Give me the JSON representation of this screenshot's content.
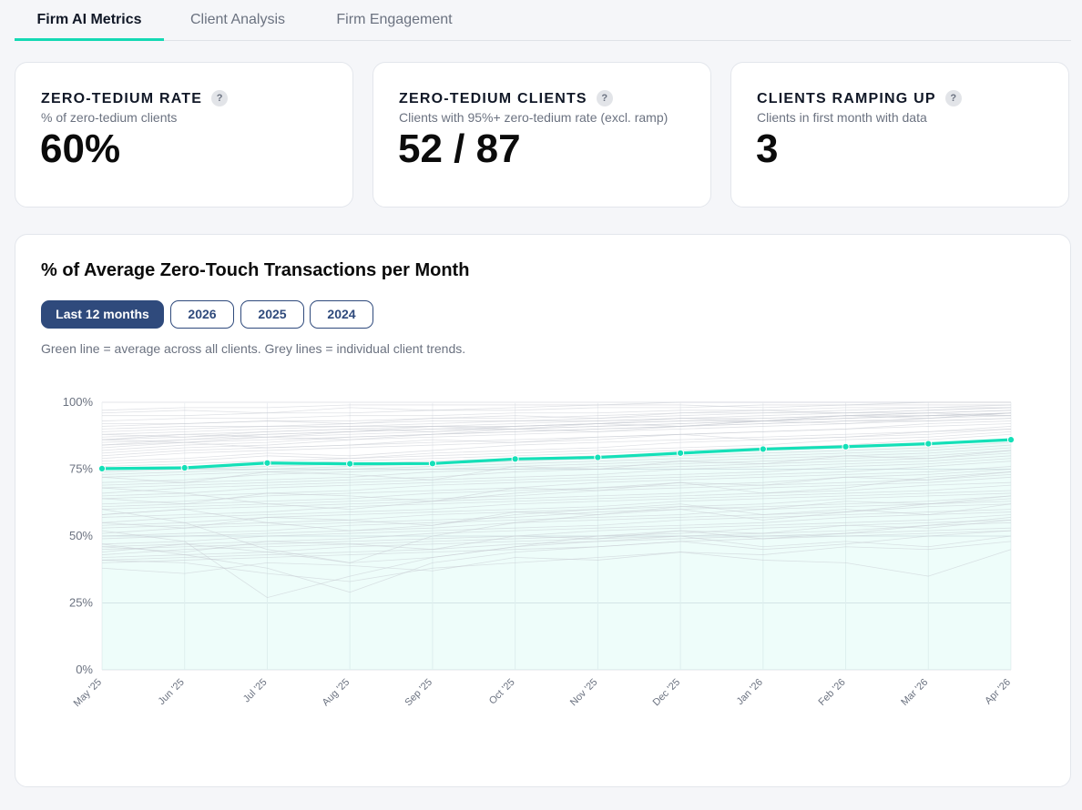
{
  "tabs": [
    {
      "label": "Firm AI Metrics",
      "active": true
    },
    {
      "label": "Client Analysis",
      "active": false
    },
    {
      "label": "Firm Engagement",
      "active": false
    }
  ],
  "metrics": [
    {
      "title": "ZERO-TEDIUM RATE",
      "help": "?",
      "subtitle": "% of zero-tedium clients",
      "value": "60%"
    },
    {
      "title": "ZERO-TEDIUM CLIENTS",
      "help": "?",
      "subtitle": "Clients with 95%+ zero-tedium rate (excl. ramp)",
      "value": "52 / 87"
    },
    {
      "title": "CLIENTS RAMPING UP",
      "help": "?",
      "subtitle": "Clients in first month with data",
      "value": "3"
    }
  ],
  "chart_section": {
    "title": "% of Average Zero-Touch Transactions per Month",
    "filters": [
      {
        "label": "Last 12 months",
        "active": true
      },
      {
        "label": "2026",
        "active": false
      },
      {
        "label": "2025",
        "active": false
      },
      {
        "label": "2024",
        "active": false
      }
    ],
    "note": "Green line = average across all clients. Grey lines = individual client trends."
  },
  "colors": {
    "accent": "#14e0b8",
    "filter_active": "#2f4a7c",
    "client_lines": "#c7cad1"
  },
  "chart_data": {
    "type": "line",
    "categories": [
      "May '25",
      "Jun '25",
      "Jul '25",
      "Aug '25",
      "Sep '25",
      "Oct '25",
      "Nov '25",
      "Dec '25",
      "Jan '26",
      "Feb '26",
      "Mar '26",
      "Apr '26"
    ],
    "y_ticks": [
      "0%",
      "25%",
      "50%",
      "75%",
      "100%"
    ],
    "ylim": [
      0,
      100
    ],
    "grid": true,
    "series": [
      {
        "role": "average",
        "values": [
          75.2,
          75.5,
          77.3,
          77.0,
          77.1,
          78.8,
          79.4,
          81.0,
          82.5,
          83.4,
          84.5,
          86.0
        ]
      }
    ],
    "client_trends": [
      [
        97,
        98,
        98,
        99,
        99,
        99,
        99,
        100,
        100,
        100,
        100,
        100
      ],
      [
        95,
        95,
        96,
        96,
        97,
        97,
        98,
        98,
        99,
        99,
        99,
        99
      ],
      [
        93,
        94,
        94,
        95,
        95,
        96,
        96,
        97,
        97,
        98,
        98,
        99
      ],
      [
        91,
        92,
        93,
        93,
        94,
        94,
        95,
        96,
        96,
        97,
        98,
        98
      ],
      [
        90,
        91,
        91,
        92,
        93,
        93,
        94,
        95,
        96,
        96,
        97,
        98
      ],
      [
        89,
        90,
        91,
        91,
        92,
        93,
        93,
        94,
        95,
        96,
        96,
        97
      ],
      [
        88,
        89,
        90,
        91,
        91,
        92,
        93,
        94,
        94,
        95,
        96,
        97
      ],
      [
        87,
        88,
        89,
        90,
        91,
        91,
        92,
        93,
        94,
        95,
        95,
        96
      ],
      [
        86,
        87,
        88,
        89,
        90,
        91,
        92,
        93,
        93,
        94,
        95,
        96
      ],
      [
        85,
        86,
        88,
        89,
        90,
        90,
        91,
        92,
        93,
        94,
        95,
        96
      ],
      [
        84,
        86,
        87,
        88,
        89,
        90,
        91,
        92,
        93,
        94,
        95,
        95
      ],
      [
        83,
        85,
        86,
        87,
        88,
        89,
        90,
        91,
        92,
        93,
        94,
        95
      ],
      [
        82,
        84,
        85,
        87,
        88,
        89,
        90,
        91,
        92,
        93,
        93,
        94
      ],
      [
        81,
        83,
        84,
        86,
        87,
        88,
        89,
        90,
        91,
        92,
        93,
        94
      ],
      [
        96,
        97,
        96,
        98,
        97,
        98,
        99,
        99,
        98,
        99,
        100,
        100
      ],
      [
        92,
        92,
        93,
        92,
        94,
        95,
        94,
        96,
        97,
        96,
        97,
        98
      ],
      [
        88,
        87,
        89,
        90,
        89,
        91,
        92,
        91,
        93,
        95,
        94,
        96
      ],
      [
        86,
        88,
        87,
        89,
        91,
        90,
        92,
        94,
        93,
        95,
        96,
        95
      ],
      [
        84,
        85,
        87,
        86,
        88,
        90,
        89,
        91,
        93,
        92,
        94,
        96
      ],
      [
        80,
        82,
        83,
        84,
        85,
        86,
        87,
        88,
        89,
        90,
        92,
        93
      ],
      [
        79,
        81,
        82,
        83,
        84,
        85,
        86,
        88,
        89,
        90,
        91,
        92
      ],
      [
        78,
        79,
        81,
        80,
        82,
        84,
        85,
        86,
        87,
        88,
        89,
        91
      ],
      [
        77,
        78,
        80,
        79,
        81,
        82,
        83,
        85,
        86,
        87,
        88,
        90
      ],
      [
        76,
        77,
        78,
        79,
        80,
        81,
        82,
        83,
        84,
        86,
        87,
        89
      ],
      [
        75,
        76,
        77,
        78,
        79,
        80,
        81,
        82,
        83,
        84,
        86,
        88
      ],
      [
        74,
        75,
        76,
        77,
        78,
        79,
        80,
        81,
        82,
        83,
        84,
        86
      ],
      [
        73,
        74,
        75,
        76,
        77,
        78,
        79,
        80,
        81,
        82,
        83,
        85
      ],
      [
        72,
        73,
        74,
        75,
        76,
        77,
        78,
        79,
        80,
        81,
        82,
        84
      ],
      [
        70,
        71,
        73,
        74,
        75,
        76,
        77,
        78,
        79,
        80,
        81,
        83
      ],
      [
        69,
        70,
        71,
        72,
        74,
        75,
        76,
        77,
        78,
        79,
        80,
        82
      ],
      [
        68,
        69,
        70,
        71,
        72,
        74,
        75,
        76,
        77,
        78,
        79,
        81
      ],
      [
        66,
        68,
        69,
        70,
        71,
        72,
        73,
        75,
        76,
        77,
        78,
        80
      ],
      [
        65,
        66,
        68,
        69,
        70,
        71,
        72,
        73,
        74,
        76,
        77,
        79
      ],
      [
        64,
        65,
        66,
        67,
        69,
        70,
        71,
        72,
        73,
        74,
        76,
        78
      ],
      [
        62,
        63,
        65,
        66,
        67,
        68,
        70,
        71,
        72,
        73,
        74,
        76
      ],
      [
        61,
        62,
        63,
        64,
        66,
        67,
        68,
        69,
        70,
        72,
        73,
        75
      ],
      [
        60,
        61,
        62,
        63,
        64,
        65,
        67,
        68,
        69,
        70,
        71,
        73
      ],
      [
        58,
        60,
        61,
        62,
        63,
        64,
        65,
        66,
        68,
        69,
        70,
        72
      ],
      [
        57,
        58,
        59,
        61,
        62,
        63,
        64,
        65,
        66,
        67,
        69,
        70
      ],
      [
        55,
        57,
        58,
        59,
        60,
        62,
        63,
        64,
        65,
        66,
        67,
        69
      ],
      [
        54,
        55,
        57,
        58,
        59,
        60,
        61,
        63,
        64,
        65,
        66,
        67
      ],
      [
        53,
        54,
        55,
        56,
        58,
        59,
        60,
        61,
        62,
        64,
        65,
        66
      ],
      [
        51,
        53,
        54,
        55,
        56,
        57,
        59,
        60,
        61,
        62,
        63,
        65
      ],
      [
        50,
        51,
        52,
        54,
        55,
        56,
        57,
        58,
        60,
        61,
        62,
        63
      ],
      [
        49,
        50,
        51,
        52,
        53,
        55,
        56,
        57,
        58,
        59,
        61,
        62
      ],
      [
        47,
        48,
        50,
        51,
        52,
        53,
        54,
        56,
        57,
        58,
        59,
        60
      ],
      [
        46,
        47,
        48,
        49,
        51,
        52,
        53,
        54,
        55,
        57,
        58,
        59
      ],
      [
        45,
        46,
        47,
        48,
        49,
        50,
        52,
        53,
        54,
        55,
        56,
        58
      ],
      [
        43,
        45,
        46,
        47,
        48,
        49,
        50,
        51,
        53,
        54,
        55,
        56
      ],
      [
        42,
        43,
        44,
        46,
        47,
        48,
        49,
        50,
        51,
        52,
        54,
        55
      ],
      [
        41,
        42,
        43,
        44,
        45,
        47,
        48,
        49,
        50,
        51,
        52,
        53
      ],
      [
        40,
        41,
        42,
        43,
        44,
        45,
        46,
        48,
        49,
        50,
        51,
        52
      ],
      [
        72,
        70,
        74,
        73,
        71,
        76,
        75,
        78,
        77,
        80,
        79,
        82
      ],
      [
        64,
        62,
        66,
        65,
        63,
        68,
        67,
        70,
        69,
        72,
        71,
        74
      ],
      [
        55,
        53,
        57,
        56,
        54,
        59,
        58,
        61,
        60,
        63,
        62,
        65
      ],
      [
        46,
        44,
        48,
        47,
        45,
        50,
        49,
        52,
        51,
        54,
        53,
        56
      ],
      [
        38,
        36,
        40,
        39,
        37,
        42,
        41,
        44,
        43,
        46,
        45,
        48
      ],
      [
        60,
        55,
        45,
        40,
        50,
        55,
        58,
        60,
        56,
        59,
        62,
        64
      ],
      [
        52,
        48,
        27,
        35,
        42,
        46,
        50,
        52,
        49,
        51,
        54,
        57
      ],
      [
        47,
        43,
        38,
        29,
        40,
        44,
        46,
        48,
        45,
        47,
        50,
        52
      ],
      [
        41,
        40,
        36,
        33,
        38,
        40,
        42,
        44,
        41,
        40,
        35,
        45
      ],
      [
        68,
        66,
        62,
        60,
        63,
        66,
        68,
        70,
        66,
        68,
        72,
        74
      ],
      [
        58,
        60,
        55,
        52,
        54,
        58,
        60,
        62,
        58,
        60,
        58,
        62
      ],
      [
        44,
        47,
        44,
        40,
        42,
        46,
        48,
        50,
        46,
        48,
        46,
        50
      ],
      [
        86,
        85,
        83,
        84,
        86,
        85,
        87,
        88,
        86,
        87,
        89,
        90
      ]
    ]
  }
}
